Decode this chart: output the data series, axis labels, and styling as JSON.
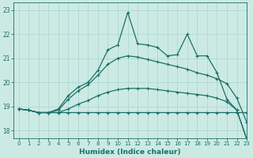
{
  "xlabel": "Humidex (Indice chaleur)",
  "bg_color": "#cceae4",
  "grid_color": "#aad4cc",
  "line_color": "#1a7068",
  "xlim": [
    -0.5,
    23
  ],
  "ylim": [
    17.7,
    23.3
  ],
  "xticks": [
    0,
    1,
    2,
    3,
    4,
    5,
    6,
    7,
    8,
    9,
    10,
    11,
    12,
    13,
    14,
    15,
    16,
    17,
    18,
    19,
    20,
    21,
    22,
    23
  ],
  "yticks": [
    18,
    19,
    20,
    21,
    22,
    23
  ],
  "line1_x": [
    0,
    1,
    2,
    3,
    4,
    5,
    6,
    7,
    8,
    9,
    10,
    11,
    12,
    13,
    14,
    15,
    16,
    17,
    18,
    19,
    20,
    21,
    22,
    23
  ],
  "line1_y": [
    18.9,
    18.85,
    18.75,
    18.75,
    18.75,
    18.75,
    18.75,
    18.75,
    18.75,
    18.75,
    18.75,
    18.75,
    18.75,
    18.75,
    18.75,
    18.75,
    18.75,
    18.75,
    18.75,
    18.75,
    18.75,
    18.75,
    18.75,
    18.75
  ],
  "line2_x": [
    0,
    1,
    2,
    3,
    4,
    5,
    6,
    7,
    8,
    9,
    10,
    11,
    12,
    13,
    14,
    15,
    16,
    17,
    18,
    19,
    20,
    21,
    22,
    23
  ],
  "line2_y": [
    18.9,
    18.85,
    18.75,
    18.75,
    18.75,
    18.9,
    19.1,
    19.25,
    19.45,
    19.6,
    19.7,
    19.75,
    19.75,
    19.75,
    19.7,
    19.65,
    19.6,
    19.55,
    19.5,
    19.45,
    19.35,
    19.2,
    18.85,
    17.65
  ],
  "line3_x": [
    0,
    1,
    2,
    3,
    4,
    5,
    6,
    7,
    8,
    9,
    10,
    11,
    12,
    13,
    14,
    15,
    16,
    17,
    18,
    19,
    20,
    21,
    22,
    23
  ],
  "line3_y": [
    18.9,
    18.85,
    18.75,
    18.75,
    18.85,
    19.3,
    19.65,
    19.9,
    20.3,
    20.75,
    21.0,
    21.1,
    21.05,
    20.95,
    20.85,
    20.75,
    20.65,
    20.55,
    20.4,
    20.3,
    20.15,
    19.95,
    19.35,
    18.35
  ],
  "line4_x": [
    0,
    1,
    2,
    3,
    4,
    5,
    6,
    7,
    8,
    9,
    10,
    11,
    12,
    13,
    14,
    15,
    16,
    17,
    18,
    19,
    20,
    21,
    22,
    23
  ],
  "line4_y": [
    18.9,
    18.85,
    18.75,
    18.75,
    18.9,
    19.45,
    19.8,
    20.0,
    20.5,
    21.35,
    21.55,
    22.9,
    21.6,
    21.55,
    21.45,
    21.1,
    21.15,
    22.0,
    21.1,
    21.1,
    20.4,
    19.3,
    18.85,
    17.65
  ],
  "marker_size": 2.5,
  "linewidth": 0.9
}
